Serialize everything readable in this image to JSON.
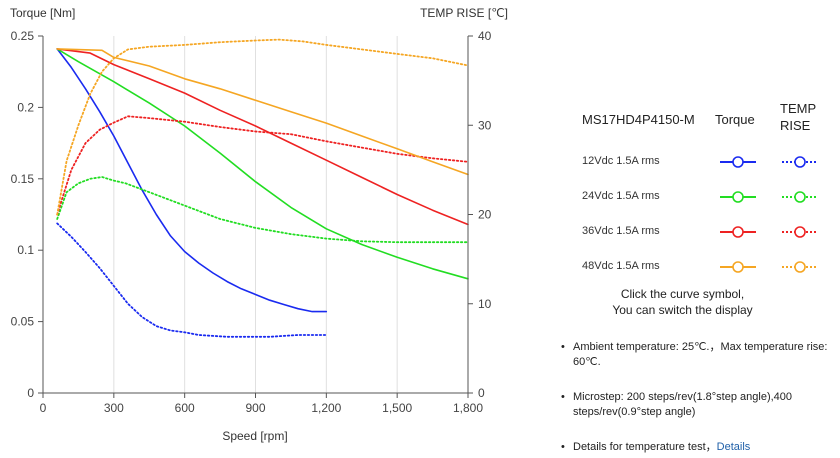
{
  "chart_data": {
    "type": "line",
    "x_label": "Speed [rpm]",
    "y_left_label": "Torque  [Nm]",
    "y_right_label": "TEMP RISE [℃]",
    "xlim": [
      0,
      1800
    ],
    "x_ticks": [
      0,
      300,
      600,
      900,
      1200,
      1500,
      1800
    ],
    "x_tick_labels": [
      "0",
      "300",
      "600",
      "900",
      "1,200",
      "1,500",
      "1,800"
    ],
    "y_left_lim": [
      0,
      0.25
    ],
    "y_left_ticks": [
      0,
      0.05,
      0.1,
      0.15,
      0.2,
      0.25
    ],
    "y_left_tick_labels": [
      "0",
      "0.05",
      "0.1",
      "0.15",
      "0.2",
      "0.25"
    ],
    "y_right_lim": [
      0,
      40
    ],
    "y_right_ticks": [
      0,
      10,
      20,
      30,
      40
    ],
    "y_right_tick_labels": [
      "0",
      "10",
      "20",
      "30",
      "40"
    ],
    "grid": "vertical",
    "series": [
      {
        "name": "12Vdc 1.5A rms Torque",
        "axis": "left",
        "color": "#1a2bf0",
        "dash": false,
        "x": [
          60,
          120,
          180,
          240,
          300,
          360,
          420,
          480,
          540,
          600,
          660,
          720,
          780,
          840,
          900,
          960,
          1020,
          1080,
          1140,
          1200
        ],
        "y": [
          0.241,
          0.228,
          0.213,
          0.197,
          0.18,
          0.161,
          0.142,
          0.125,
          0.11,
          0.099,
          0.091,
          0.084,
          0.078,
          0.073,
          0.069,
          0.065,
          0.062,
          0.059,
          0.057,
          0.057
        ]
      },
      {
        "name": "12Vdc 1.5A rms TEMP RISE",
        "axis": "right",
        "color": "#1a2bf0",
        "dash": true,
        "x": [
          60,
          120,
          180,
          240,
          300,
          360,
          420,
          480,
          540,
          600,
          660,
          720,
          780,
          840,
          900,
          960,
          1020,
          1080,
          1140,
          1200
        ],
        "y": [
          19,
          17.5,
          15.8,
          14,
          12,
          10,
          8.5,
          7.5,
          7,
          6.8,
          6.5,
          6.4,
          6.3,
          6.3,
          6.3,
          6.3,
          6.4,
          6.5,
          6.5,
          6.5
        ]
      },
      {
        "name": "24Vdc 1.5A rms Torque",
        "axis": "left",
        "color": "#22dd22",
        "dash": false,
        "x": [
          60,
          150,
          300,
          450,
          600,
          750,
          900,
          1050,
          1200,
          1350,
          1500,
          1650,
          1800
        ],
        "y": [
          0.241,
          0.232,
          0.218,
          0.203,
          0.187,
          0.168,
          0.148,
          0.13,
          0.115,
          0.104,
          0.095,
          0.087,
          0.08
        ]
      },
      {
        "name": "24Vdc 1.5A rms TEMP RISE",
        "axis": "right",
        "color": "#22dd22",
        "dash": true,
        "x": [
          60,
          100,
          150,
          200,
          250,
          300,
          350,
          450,
          600,
          750,
          900,
          1050,
          1200,
          1350,
          1500,
          1650,
          1800
        ],
        "y": [
          19.5,
          22.5,
          23.5,
          24,
          24.2,
          23.8,
          23.5,
          22.5,
          21,
          19.5,
          18.5,
          17.8,
          17.3,
          17,
          16.9,
          16.9,
          16.9
        ]
      },
      {
        "name": "36Vdc 1.5A rms Torque",
        "axis": "left",
        "color": "#ee2222",
        "dash": false,
        "x": [
          60,
          200,
          300,
          450,
          600,
          750,
          900,
          1050,
          1200,
          1350,
          1500,
          1650,
          1800
        ],
        "y": [
          0.241,
          0.238,
          0.23,
          0.22,
          0.21,
          0.198,
          0.187,
          0.175,
          0.163,
          0.151,
          0.139,
          0.128,
          0.118
        ]
      },
      {
        "name": "36Vdc 1.5A rms TEMP RISE",
        "axis": "right",
        "color": "#ee2222",
        "dash": true,
        "x": [
          60,
          120,
          180,
          240,
          300,
          360,
          450,
          600,
          750,
          900,
          1050,
          1200,
          1350,
          1500,
          1650,
          1800
        ],
        "y": [
          20,
          25,
          28,
          29.5,
          30.3,
          31,
          30.8,
          30.4,
          29.8,
          29.3,
          29,
          28.2,
          27.5,
          26.8,
          26.3,
          25.9
        ]
      },
      {
        "name": "48Vdc 1.5A rms Torque",
        "axis": "left",
        "color": "#f5a623",
        "dash": false,
        "x": [
          60,
          250,
          300,
          450,
          600,
          750,
          900,
          1050,
          1200,
          1350,
          1500,
          1650,
          1800
        ],
        "y": [
          0.241,
          0.24,
          0.235,
          0.229,
          0.22,
          0.213,
          0.205,
          0.197,
          0.189,
          0.18,
          0.171,
          0.162,
          0.153
        ]
      },
      {
        "name": "48Vdc 1.5A rms TEMP RISE",
        "axis": "right",
        "color": "#f5a623",
        "dash": true,
        "x": [
          60,
          100,
          150,
          200,
          250,
          300,
          360,
          450,
          600,
          750,
          900,
          1000,
          1100,
          1200,
          1350,
          1500,
          1650,
          1800
        ],
        "y": [
          20,
          26,
          30,
          33.5,
          36,
          37.5,
          38.5,
          38.8,
          39,
          39.3,
          39.5,
          39.6,
          39.4,
          39,
          38.5,
          38,
          37.5,
          36.7
        ]
      }
    ]
  },
  "legend": {
    "model": "MS17HD4P4150-M",
    "torque_header": "Torque",
    "temp_header_line1": "TEMP",
    "temp_header_line2": "RISE",
    "rows": [
      {
        "label": "12Vdc   1.5A rms",
        "color": "#1a2bf0"
      },
      {
        "label": "24Vdc   1.5A rms",
        "color": "#22dd22"
      },
      {
        "label": "36Vdc   1.5A rms",
        "color": "#ee2222"
      },
      {
        "label": "48Vdc   1.5A rms",
        "color": "#f5a623"
      }
    ],
    "hint_line1": "Click the curve symbol,",
    "hint_line2": "You can switch the display"
  },
  "notes": {
    "ambient": "Ambient temperature: 25℃.，Max temperature rise: 60℃.",
    "microstep": "Microstep: 200 steps/rev(1.8°step angle),400 steps/rev(0.9°step angle)",
    "details_prefix": "Details for temperature test，",
    "details_link": "Details"
  }
}
